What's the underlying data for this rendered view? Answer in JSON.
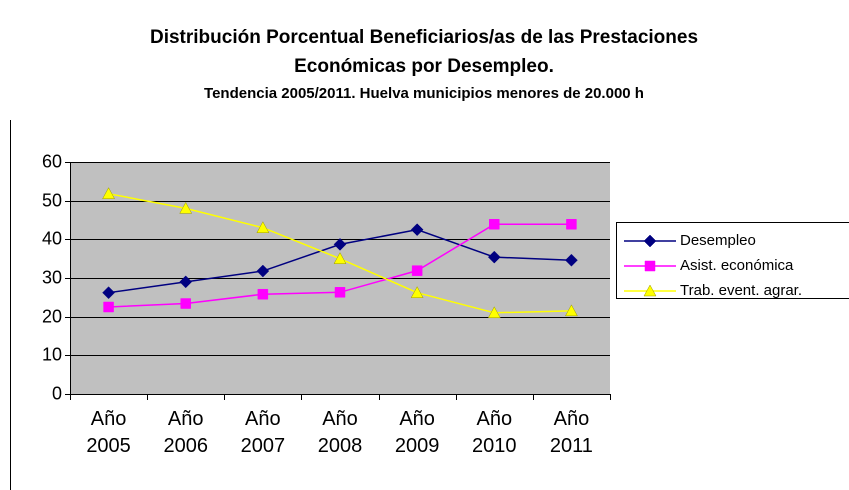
{
  "chart_data": {
    "type": "line",
    "title": [
      "Distribución Porcentual Beneficiarios/as de las Prestaciones",
      "Económicas por Desempleo."
    ],
    "subtitle": "Tendencia 2005/2011. Huelva municipios menores de 20.000 h",
    "categories": [
      "Año 2005",
      "Año 2006",
      "Año 2007",
      "Año 2008",
      "Año 2009",
      "Año 2010",
      "Año 2011"
    ],
    "series": [
      {
        "name": "Desempleo",
        "color": "#000080",
        "marker": "diamond",
        "values": [
          26.2,
          29,
          31.8,
          38.7,
          42.5,
          35.4,
          34.6
        ]
      },
      {
        "name": "Asist. económica",
        "color": "#ff00ff",
        "marker": "square",
        "values": [
          22.5,
          23.4,
          25.8,
          26.3,
          31.9,
          43.9,
          43.9
        ]
      },
      {
        "name": "Trab. event. agrar.",
        "color": "#ffff00",
        "marker": "triangle",
        "values": [
          51.8,
          48,
          43,
          35,
          26.2,
          21,
          21.5
        ]
      }
    ],
    "ylim": [
      0,
      60
    ],
    "yticks": [
      0,
      10,
      20,
      30,
      40,
      50,
      60
    ],
    "grid": true,
    "legend": "right",
    "plot_background": "#c0c0c0"
  }
}
